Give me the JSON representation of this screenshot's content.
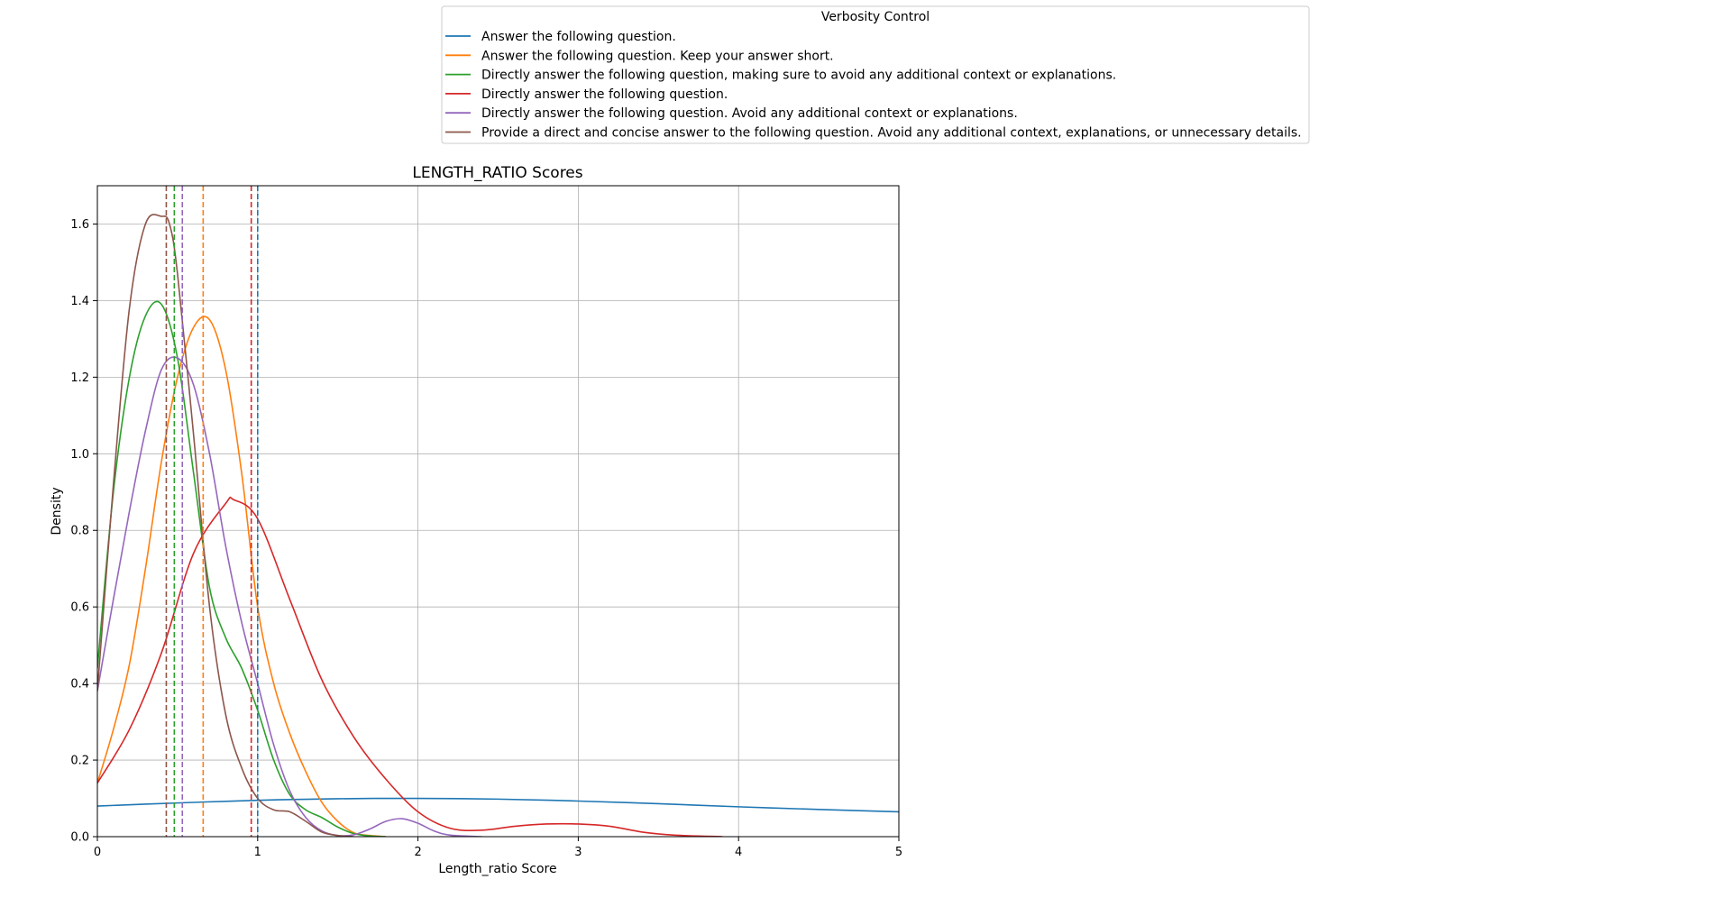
{
  "chart_data": {
    "type": "line",
    "title": "LENGTH_RATIO Scores",
    "xlabel": "Length_ratio Score",
    "ylabel": "Density",
    "xlim": [
      0,
      5
    ],
    "ylim": [
      0,
      1.7
    ],
    "xticks": [
      0,
      1,
      2,
      3,
      4,
      5
    ],
    "yticks": [
      0.0,
      0.2,
      0.4,
      0.6,
      0.8,
      1.0,
      1.2,
      1.4,
      1.6
    ],
    "xtick_labels": [
      "0",
      "1",
      "2",
      "3",
      "4",
      "5"
    ],
    "ytick_labels": [
      "0.0",
      "0.2",
      "0.4",
      "0.6",
      "0.8",
      "1.0",
      "1.2",
      "1.4",
      "1.6"
    ],
    "grid": true,
    "legend": {
      "title": "Verbosity Control",
      "placement": "top-center outside"
    },
    "series": [
      {
        "name": "Answer the following question.",
        "color": "#1f77b4",
        "median": 1.0,
        "x": [
          0,
          0.5,
          1.0,
          1.5,
          2.0,
          2.5,
          3.0,
          3.5,
          4.0,
          4.5,
          5.0
        ],
        "y": [
          0.08,
          0.088,
          0.095,
          0.099,
          0.1,
          0.098,
          0.093,
          0.086,
          0.078,
          0.071,
          0.065
        ]
      },
      {
        "name": "Answer the following question. Keep your answer short.",
        "color": "#ff7f0e",
        "median": 0.66,
        "x": [
          0,
          0.1,
          0.2,
          0.3,
          0.4,
          0.5,
          0.6,
          0.7,
          0.8,
          0.9,
          1.0,
          1.1,
          1.2,
          1.3,
          1.4,
          1.5,
          1.6,
          1.7,
          1.8
        ],
        "y": [
          0.14,
          0.28,
          0.45,
          0.7,
          0.98,
          1.2,
          1.33,
          1.35,
          1.22,
          0.95,
          0.6,
          0.4,
          0.27,
          0.17,
          0.09,
          0.04,
          0.01,
          0.003,
          0.0
        ]
      },
      {
        "name": "Directly answer the following question, making sure to avoid any additional context or explanations.",
        "color": "#2ca02c",
        "median": 0.48,
        "x": [
          0,
          0.1,
          0.2,
          0.3,
          0.4,
          0.5,
          0.6,
          0.7,
          0.8,
          0.9,
          1.0,
          1.1,
          1.2,
          1.3,
          1.4,
          1.5,
          1.6,
          1.7,
          1.8
        ],
        "y": [
          0.44,
          0.9,
          1.2,
          1.36,
          1.39,
          1.25,
          0.95,
          0.65,
          0.52,
          0.44,
          0.33,
          0.2,
          0.11,
          0.07,
          0.05,
          0.025,
          0.008,
          0.002,
          0.0
        ]
      },
      {
        "name": "Directly answer the following question.",
        "color": "#d62728",
        "median": 0.96,
        "x": [
          0,
          0.2,
          0.4,
          0.6,
          0.8,
          0.85,
          1.0,
          1.2,
          1.4,
          1.6,
          1.8,
          2.0,
          2.2,
          2.4,
          2.6,
          2.8,
          3.0,
          3.2,
          3.4,
          3.6,
          3.9
        ],
        "y": [
          0.14,
          0.28,
          0.48,
          0.74,
          0.87,
          0.88,
          0.83,
          0.62,
          0.41,
          0.26,
          0.15,
          0.065,
          0.022,
          0.017,
          0.027,
          0.033,
          0.033,
          0.027,
          0.012,
          0.004,
          0.0
        ]
      },
      {
        "name": "Directly answer the following question. Avoid any additional context or explanations.",
        "color": "#9467bd",
        "median": 0.53,
        "x": [
          0,
          0.1,
          0.2,
          0.3,
          0.4,
          0.5,
          0.6,
          0.7,
          0.8,
          0.9,
          1.0,
          1.1,
          1.2,
          1.3,
          1.4,
          1.5,
          1.6,
          1.7,
          1.8,
          1.9,
          2.0,
          2.1,
          2.2,
          2.4
        ],
        "y": [
          0.38,
          0.62,
          0.85,
          1.06,
          1.22,
          1.25,
          1.18,
          1.0,
          0.76,
          0.56,
          0.4,
          0.24,
          0.12,
          0.05,
          0.015,
          0.003,
          0.005,
          0.02,
          0.04,
          0.047,
          0.035,
          0.015,
          0.004,
          0.0
        ]
      },
      {
        "name": "Provide a direct and concise answer to the following question. Avoid any additional context, explanations, or unnecessary details.",
        "color": "#8c564b",
        "median": 0.43,
        "x": [
          0,
          0.1,
          0.2,
          0.3,
          0.4,
          0.45,
          0.5,
          0.6,
          0.7,
          0.8,
          0.9,
          1.0,
          1.1,
          1.2,
          1.3,
          1.4,
          1.5,
          1.6
        ],
        "y": [
          0.38,
          0.92,
          1.38,
          1.6,
          1.62,
          1.6,
          1.47,
          1.05,
          0.6,
          0.32,
          0.18,
          0.1,
          0.07,
          0.065,
          0.04,
          0.012,
          0.003,
          0.0
        ]
      }
    ]
  }
}
